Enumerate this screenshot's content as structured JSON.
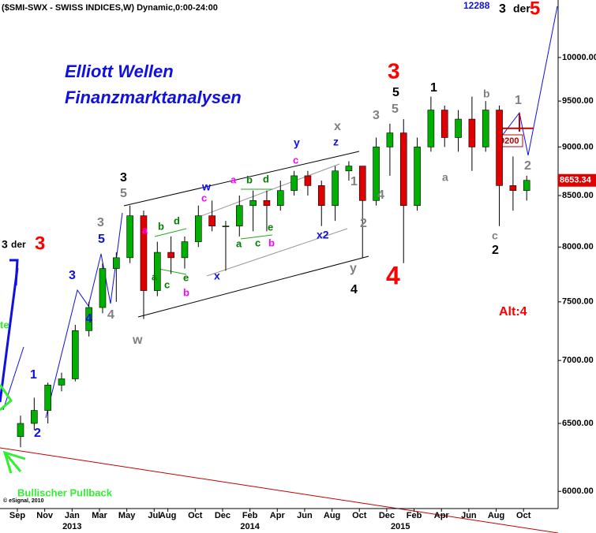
{
  "chart_data": {
    "type": "candlestick",
    "header": "($SMI-SWX - SWISS INDICES,W) Dynamic,0:00-24:00",
    "title": "Elliott Wellen",
    "subtitle": "Finanzmarktanalysen",
    "x": [
      "2012-09",
      "2012-10",
      "2012-11",
      "2012-12",
      "2013-01",
      "2013-02",
      "2013-03",
      "2013-04",
      "2013-05",
      "2013-06",
      "2013-07",
      "2013-08",
      "2013-09",
      "2013-10",
      "2013-11",
      "2013-12",
      "2014-01",
      "2014-02",
      "2014-03",
      "2014-04",
      "2014-05",
      "2014-06",
      "2014-07",
      "2014-08",
      "2014-09",
      "2014-10",
      "2014-11",
      "2014-12",
      "2015-01",
      "2015-02",
      "2015-03",
      "2015-04",
      "2015-05",
      "2015-06",
      "2015-07",
      "2015-08",
      "2015-09",
      "2015-10"
    ],
    "open": [
      6400,
      6500,
      6600,
      6800,
      6850,
      7250,
      7450,
      7800,
      7900,
      8300,
      7600,
      7950,
      7900,
      8050,
      8300,
      8200,
      8200,
      8400,
      8450,
      8400,
      8550,
      8700,
      8600,
      8400,
      8750,
      8800,
      8450,
      9000,
      9150,
      8400,
      9000,
      9400,
      9100,
      9300,
      9000,
      9400,
      8600,
      8550
    ],
    "high": [
      6560,
      6700,
      6820,
      6900,
      7300,
      7500,
      7850,
      7950,
      8400,
      8350,
      8050,
      8100,
      8100,
      8400,
      8450,
      8250,
      8500,
      8550,
      8550,
      8650,
      8750,
      8750,
      8650,
      8800,
      8850,
      8800,
      9100,
      9250,
      9300,
      9100,
      9550,
      9450,
      9400,
      9550,
      9500,
      9450,
      8900,
      8700
    ],
    "low": [
      6320,
      6450,
      6500,
      6750,
      6830,
      7200,
      7400,
      7500,
      7850,
      7350,
      7550,
      7750,
      7800,
      8000,
      8150,
      7780,
      8100,
      8150,
      8150,
      8350,
      8500,
      8500,
      8200,
      8250,
      8650,
      7900,
      8400,
      8700,
      7850,
      8350,
      8950,
      9000,
      8950,
      8750,
      8950,
      8200,
      8350,
      8450
    ],
    "close": [
      6500,
      6600,
      6800,
      6850,
      7250,
      7450,
      7800,
      7900,
      8300,
      7600,
      7950,
      7900,
      8050,
      8300,
      8200,
      8200,
      8400,
      8450,
      8400,
      8550,
      8700,
      8600,
      8400,
      8750,
      8800,
      8450,
      9000,
      9150,
      8400,
      9000,
      9400,
      9100,
      9300,
      9000,
      9400,
      8600,
      8550,
      8653.34
    ],
    "up_color": "#00b000",
    "down_color": "#e00000",
    "log_scale": true,
    "ylim": [
      5880,
      10700
    ],
    "yticks": [
      {
        "value": 6000,
        "label": "6000.00"
      },
      {
        "value": 6500,
        "label": "6500.00"
      },
      {
        "value": 7000,
        "label": "7000.00"
      },
      {
        "value": 7500,
        "label": "7500.00"
      },
      {
        "value": 8000,
        "label": "8000.00"
      },
      {
        "value": 8500,
        "label": "8500.00"
      },
      {
        "value": 9000,
        "label": "9000.00"
      },
      {
        "value": 9500,
        "label": "9500.00"
      },
      {
        "value": 10000,
        "label": "10000.00"
      }
    ],
    "xticks": [
      {
        "value": "2012-09",
        "label": "Sep"
      },
      {
        "value": "2012-11",
        "label": "Nov"
      },
      {
        "value": "2013-01",
        "label": "Jan"
      },
      {
        "value": "2013-03",
        "label": "Mar"
      },
      {
        "value": "2013-05",
        "label": "May"
      },
      {
        "value": "2013-07",
        "label": "Jul"
      },
      {
        "value": "2013-08",
        "label": "Aug"
      },
      {
        "value": "2013-10",
        "label": "Oct"
      },
      {
        "value": "2013-12",
        "label": "Dec"
      },
      {
        "value": "2014-02",
        "label": "Feb"
      },
      {
        "value": "2014-04",
        "label": "Apr"
      },
      {
        "value": "2014-06",
        "label": "Jun"
      },
      {
        "value": "2014-08",
        "label": "Aug"
      },
      {
        "value": "2014-10",
        "label": "Oct"
      },
      {
        "value": "2014-12",
        "label": "Dec"
      },
      {
        "value": "2015-02",
        "label": "Feb"
      },
      {
        "value": "2015-04",
        "label": "Apr"
      },
      {
        "value": "2015-06",
        "label": "Jun"
      },
      {
        "value": "2015-08",
        "label": "Aug"
      },
      {
        "value": "2015-10",
        "label": "Oct"
      }
    ],
    "year_labels": [
      {
        "value": "2013-01",
        "label": "2013"
      },
      {
        "value": "2014-02",
        "label": "2014"
      },
      {
        "value": "2015-01",
        "label": "2015"
      }
    ],
    "target": 12288,
    "level": 9200,
    "annotations": [
      {
        "text": "3",
        "color": "#000000"
      },
      {
        "text": "der",
        "color": "#000000"
      },
      {
        "text": "5",
        "color": "#ff0000"
      },
      {
        "text": "3",
        "color": "#000000"
      },
      {
        "text": "der",
        "color": "#000000"
      },
      {
        "text": "3",
        "color": "#ff0000"
      },
      {
        "text": "3",
        "color": "#000000"
      },
      {
        "text": "1",
        "color": "#000000"
      },
      {
        "text": "5",
        "color": "#000000"
      },
      {
        "text": "4",
        "color": "#000000"
      },
      {
        "text": "2",
        "color": "#000000"
      },
      {
        "text": "5",
        "color": "#808080"
      },
      {
        "text": "3",
        "color": "#808080"
      },
      {
        "text": "4",
        "color": "#808080"
      },
      {
        "text": "w",
        "color": "#808080"
      },
      {
        "text": "x",
        "color": "#808080"
      },
      {
        "text": "1",
        "color": "#808080"
      },
      {
        "text": "2",
        "color": "#808080"
      },
      {
        "text": "y",
        "color": "#808080"
      },
      {
        "text": "3",
        "color": "#808080"
      },
      {
        "text": "4",
        "color": "#808080"
      },
      {
        "text": "5",
        "color": "#808080"
      },
      {
        "text": "b",
        "color": "#808080"
      },
      {
        "text": "a",
        "color": "#808080"
      },
      {
        "text": "c",
        "color": "#808080"
      },
      {
        "text": "1",
        "color": "#808080"
      },
      {
        "text": "2",
        "color": "#808080"
      },
      {
        "text": "5",
        "color": "#1010e0"
      },
      {
        "text": "3",
        "color": "#1010e0"
      },
      {
        "text": "4",
        "color": "#1010e0"
      },
      {
        "text": "1",
        "color": "#1010e0"
      },
      {
        "text": "2",
        "color": "#1010e0"
      },
      {
        "text": "w",
        "color": "#1010e0"
      },
      {
        "text": "x",
        "color": "#1010e0"
      },
      {
        "text": "y",
        "color": "#1010e0"
      },
      {
        "text": "z",
        "color": "#1010e0"
      },
      {
        "text": "x2",
        "color": "#1010e0"
      },
      {
        "text": "a",
        "color": "#ff00ff"
      },
      {
        "text": "b",
        "color": "#ff00ff"
      },
      {
        "text": "c",
        "color": "#ff00ff"
      },
      {
        "text": "a",
        "color": "#ff00ff"
      },
      {
        "text": "c",
        "color": "#ff00ff"
      },
      {
        "text": "b",
        "color": "#ff00ff"
      },
      {
        "text": "b",
        "color": "#008000"
      },
      {
        "text": "d",
        "color": "#008000"
      },
      {
        "text": "a",
        "color": "#008000"
      },
      {
        "text": "c",
        "color": "#008000"
      },
      {
        "text": "e",
        "color": "#008000"
      },
      {
        "text": "b",
        "color": "#008000"
      },
      {
        "text": "d",
        "color": "#008000"
      },
      {
        "text": "a",
        "color": "#008000"
      },
      {
        "text": "c",
        "color": "#008000"
      },
      {
        "text": "e",
        "color": "#008000"
      },
      {
        "text": "3",
        "color": "#ff0000"
      },
      {
        "text": "4",
        "color": "#ff0000"
      },
      {
        "text": "Alt:4",
        "color": "#ff0000"
      },
      {
        "text": "Bullischer Pullback",
        "color": "#33ee33"
      },
      {
        "text": "te",
        "color": "#33ee33"
      },
      {
        "text": "© eSignal, 2010",
        "color": "#000000"
      }
    ]
  }
}
